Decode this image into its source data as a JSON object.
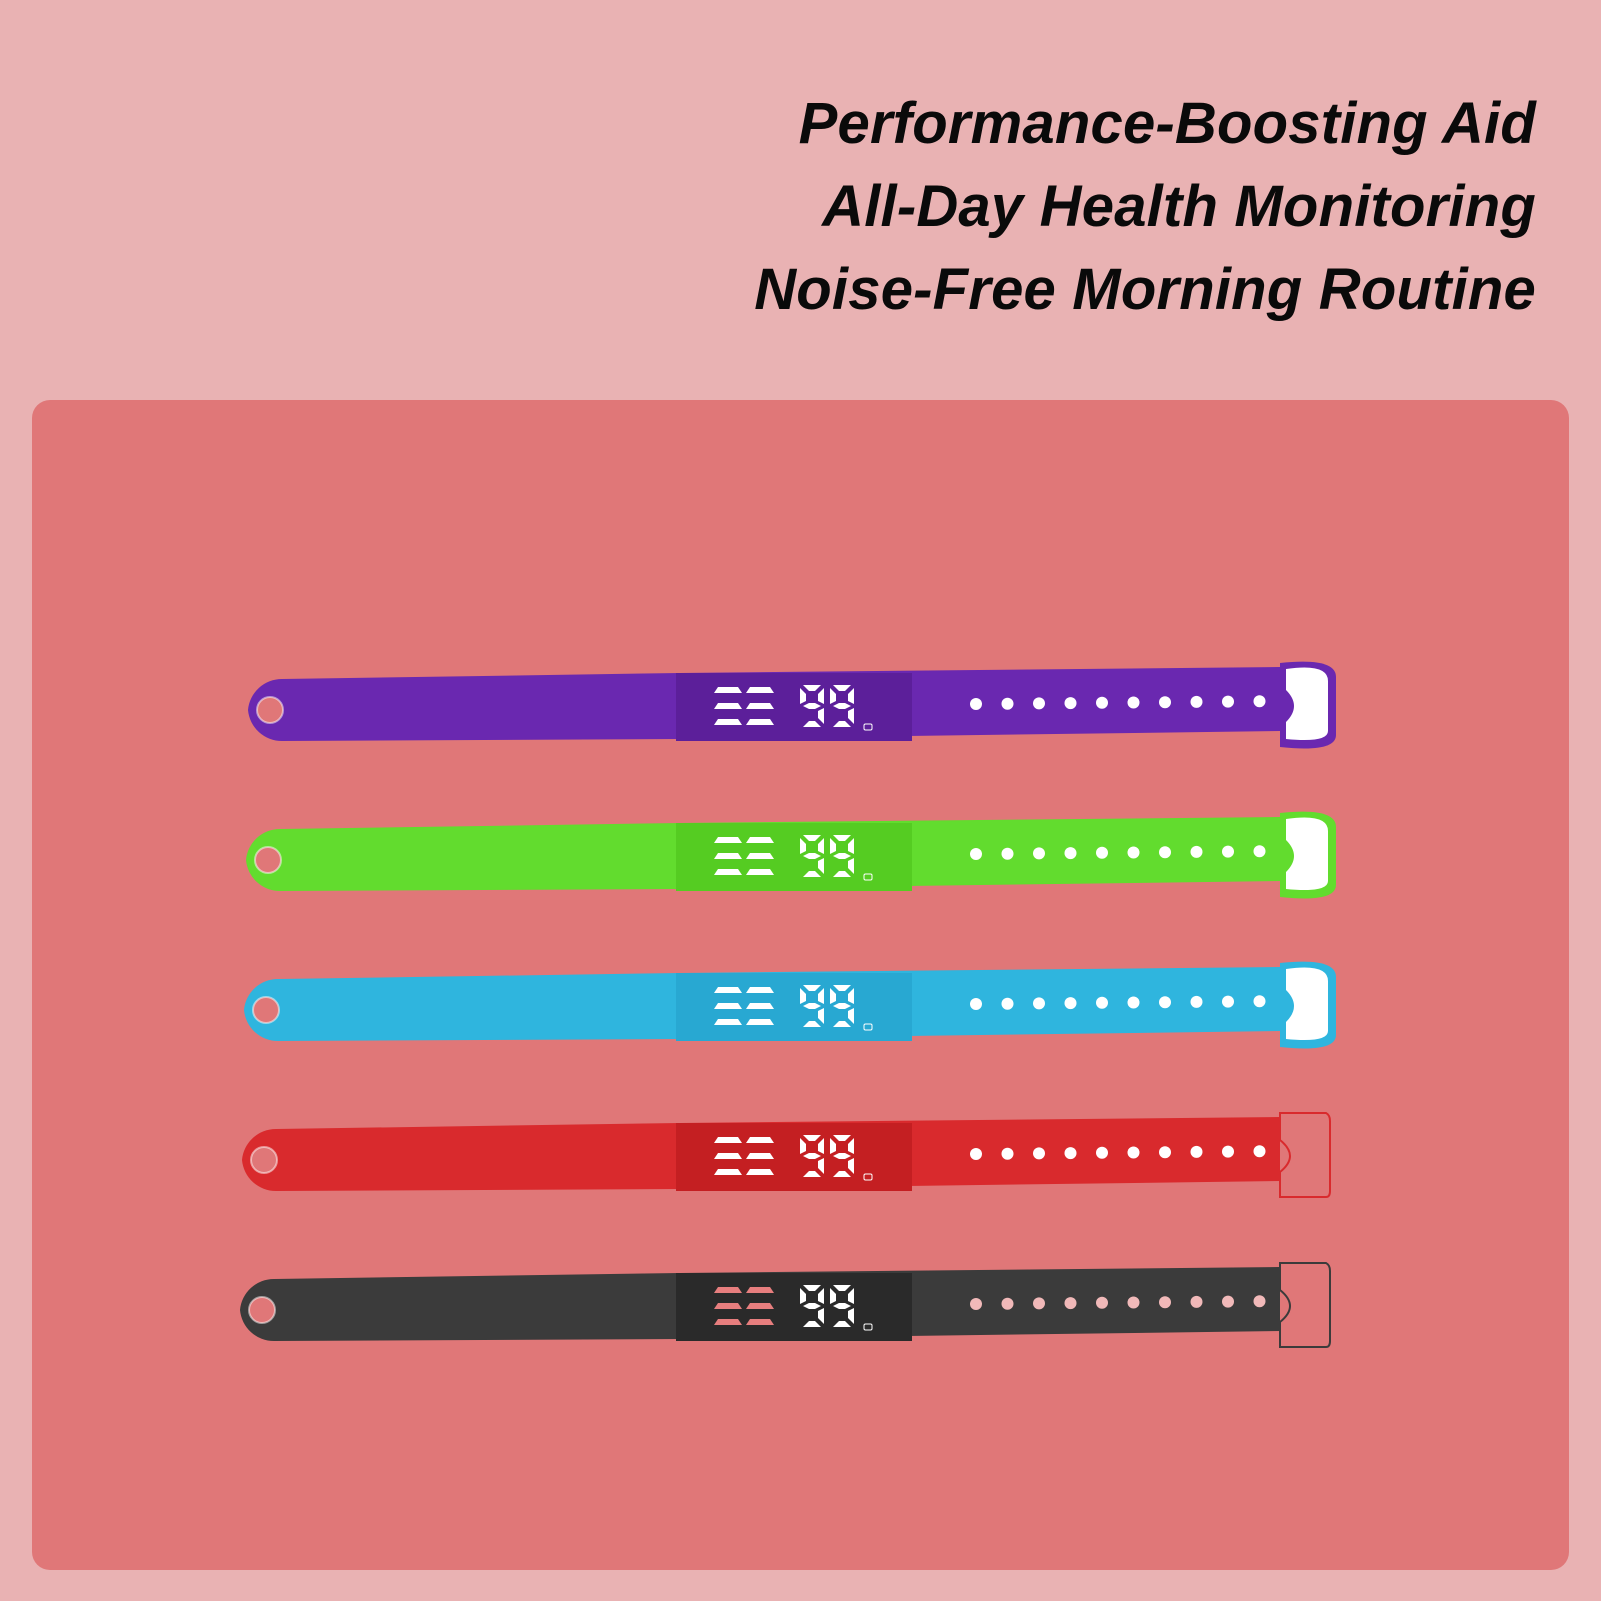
{
  "headline": {
    "line1": "Performance-Boosting Aid",
    "line2": "All-Day Health Monitoring",
    "line3": "Noise-Free Morning Routine"
  },
  "display_value": "99",
  "bands": [
    {
      "name": "purple",
      "color": "#6a28b0",
      "display": "#5c1f9a",
      "clasp": "#ffffff"
    },
    {
      "name": "green",
      "color": "#62dc2e",
      "display": "#55cc22",
      "clasp": "#ffffff"
    },
    {
      "name": "blue",
      "color": "#2fb5de",
      "display": "#28a8d2",
      "clasp": "#ffffff"
    },
    {
      "name": "red",
      "color": "#d92a2d",
      "display": "#c41f22",
      "clasp": "none"
    },
    {
      "name": "black",
      "color": "#3b3b3b",
      "display": "#2a2a2a",
      "clasp": "none"
    }
  ]
}
